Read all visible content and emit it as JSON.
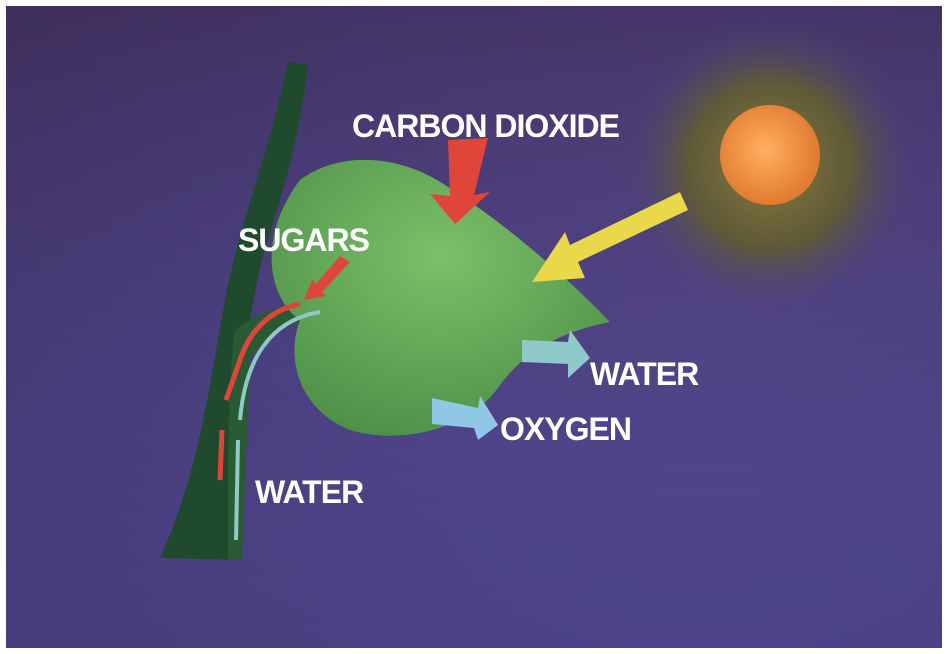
{
  "labels": {
    "carbon_dioxide": "CARBON DIOXIDE",
    "sugars": "SUGARS",
    "water_out": "WATER",
    "oxygen": "OXYGEN",
    "water_in": "WATER"
  }
}
